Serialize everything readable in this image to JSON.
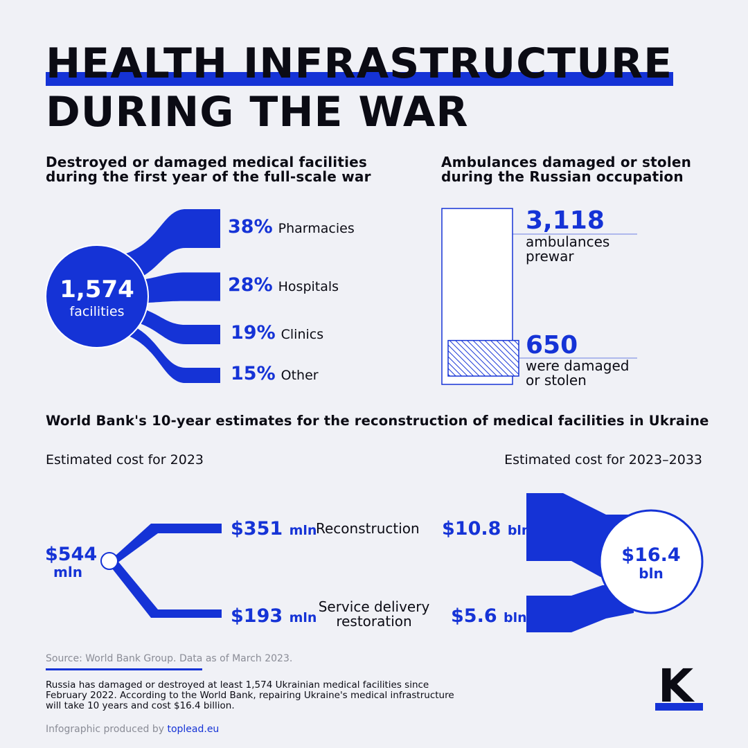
{
  "title": {
    "line1": "HEALTH INFRASTRUCTURE",
    "line2": "DURING THE WAR"
  },
  "colors": {
    "accent": "#1533d6",
    "background": "#f0f1f6",
    "text": "#0b0b14"
  },
  "facilities": {
    "heading_line1": "Destroyed or damaged medical facilities",
    "heading_line2": "during the first year of the full-scale war",
    "total_value": "1,574",
    "total_label": "facilities"
  },
  "ambulances": {
    "heading_line1": "Ambulances damaged or stolen",
    "heading_line2": "during the Russian occupation",
    "prewar_value": "3,118",
    "prewar_label_line1": "ambulances",
    "prewar_label_line2": "prewar",
    "damaged_value": "650",
    "damaged_label_line1": "were damaged",
    "damaged_label_line2": "or stolen"
  },
  "worldbank": {
    "heading": "World Bank's 10-year estimates for the reconstruction of medical facilities in Ukraine",
    "left_title": "Estimated cost for 2023",
    "right_title": "Estimated cost for 2023–2033",
    "left_total_line1": "$544",
    "left_total_line2": "mln",
    "right_total_line1": "$16.4",
    "right_total_line2": "bln",
    "rows": [
      {
        "category": "Reconstruction",
        "left_value": "$351",
        "left_unit": "mln",
        "right_value": "$10.8",
        "right_unit": "bln"
      },
      {
        "category_line1": "Service delivery",
        "category_line2": "restoration",
        "left_value": "$193",
        "left_unit": "mln",
        "right_value": "$5.6",
        "right_unit": "bln"
      }
    ]
  },
  "chart_data": [
    {
      "type": "bar",
      "title": "Destroyed or damaged medical facilities during the first year of the full-scale war",
      "total": 1574,
      "categories": [
        "Pharmacies",
        "Hospitals",
        "Clinics",
        "Other"
      ],
      "values": [
        38,
        28,
        19,
        15
      ],
      "value_labels": [
        "38%",
        "28%",
        "19%",
        "15%"
      ],
      "unit": "%"
    },
    {
      "type": "bar",
      "title": "Ambulances damaged or stolen during the Russian occupation",
      "categories": [
        "ambulances prewar",
        "were damaged or stolen"
      ],
      "values": [
        3118,
        650
      ]
    },
    {
      "type": "bar",
      "title": "World Bank's 10-year estimates for the reconstruction of medical facilities in Ukraine",
      "categories": [
        "Reconstruction",
        "Service delivery restoration"
      ],
      "series": [
        {
          "name": "Estimated cost for 2023 (mln $)",
          "values": [
            351,
            193
          ],
          "total": 544
        },
        {
          "name": "Estimated cost for 2023–2033 (bln $)",
          "values": [
            10.8,
            5.6
          ],
          "total": 16.4
        }
      ]
    }
  ],
  "footer": {
    "source": "Source: World Bank Group. Data as of March 2023.",
    "note": "Russia has damaged or destroyed at least 1,574 Ukrainian medical facilities since February 2022. According to the World Bank, repairing Ukraine's medical infrastructure will take 10 years and cost $16.4 billion.",
    "producer_prefix": "Infographic produced by ",
    "producer_link": "toplead.eu",
    "logo_letter": "K"
  }
}
